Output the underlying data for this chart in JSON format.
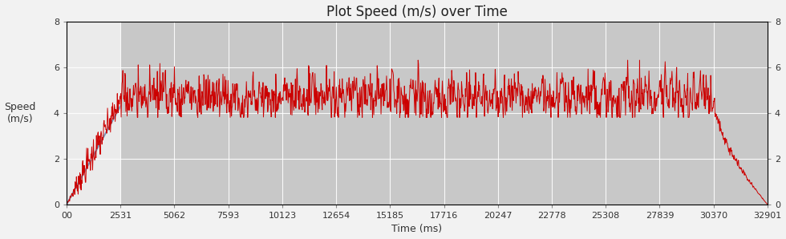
{
  "title": "Plot Speed (m/s) over Time",
  "xlabel": "Time (ms)",
  "ylabel": "Speed\n(m/s)",
  "ylim": [
    0,
    8
  ],
  "xlim": [
    0,
    32901
  ],
  "xticks": [
    0,
    2531,
    5062,
    7593,
    10123,
    12654,
    15185,
    17716,
    20247,
    22778,
    25308,
    27839,
    30370,
    32901
  ],
  "xticklabels": [
    "00",
    "2531",
    "5062",
    "7593",
    "10123",
    "12654",
    "15185",
    "17716",
    "20247",
    "22778",
    "25308",
    "27839",
    "30370",
    "32901"
  ],
  "yticks": [
    0,
    2,
    4,
    6,
    8
  ],
  "line_color": "#cc0000",
  "accel_line_color": "#7799bb",
  "background_plot": "#c8c8c8",
  "background_accel": "#ebebeb",
  "figure_bg": "#f2f2f2",
  "accel_end_ms": 2531,
  "total_ms": 32901,
  "decel_start_ms": 30370,
  "seed": 7,
  "title_fontsize": 12,
  "label_fontsize": 9,
  "tick_fontsize": 8
}
